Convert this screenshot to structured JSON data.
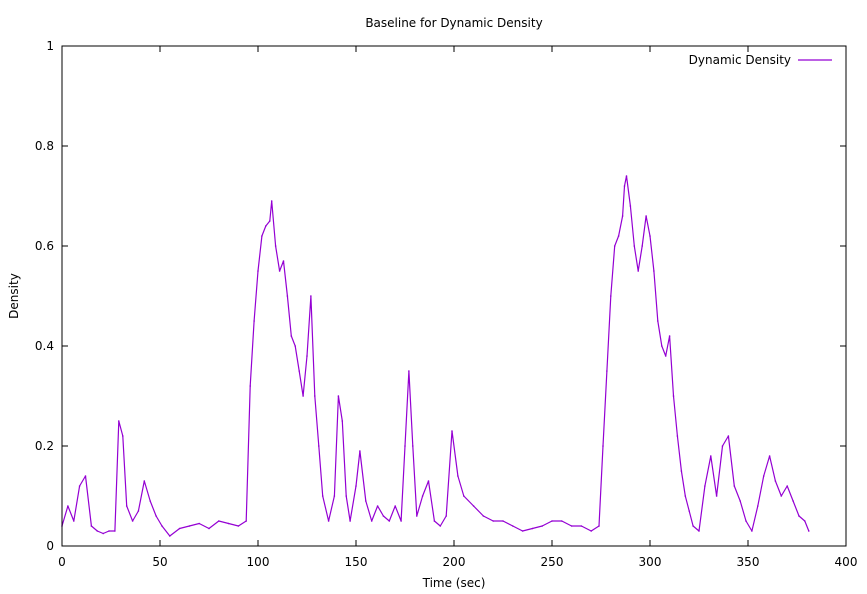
{
  "chart_data": {
    "type": "line",
    "title": "Baseline for Dynamic Density",
    "xlabel": "Time (sec)",
    "ylabel": "Density",
    "xlim": [
      0,
      400
    ],
    "ylim": [
      0,
      1
    ],
    "xticks": [
      0,
      50,
      100,
      150,
      200,
      250,
      300,
      350,
      400
    ],
    "yticks": [
      0,
      0.2,
      0.4,
      0.6,
      0.8,
      1
    ],
    "xtick_labels": [
      "0",
      "50",
      "100",
      "150",
      "200",
      "250",
      "300",
      "350",
      "400"
    ],
    "ytick_labels": [
      "0",
      "0.2",
      "0.4",
      "0.6",
      "0.8",
      "1"
    ],
    "grid": false,
    "legend": "top-right",
    "series": [
      {
        "name": "Dynamic Density",
        "color": "#9400d3",
        "x": [
          0,
          3,
          6,
          9,
          12,
          15,
          18,
          21,
          24,
          27,
          29,
          31,
          33,
          36,
          39,
          42,
          45,
          48,
          51,
          55,
          60,
          65,
          70,
          75,
          80,
          85,
          90,
          94,
          96,
          98,
          100,
          102,
          104,
          106,
          107,
          109,
          111,
          113,
          115,
          117,
          119,
          121,
          123,
          125,
          127,
          129,
          131,
          133,
          136,
          139,
          141,
          143,
          145,
          147,
          150,
          152,
          155,
          158,
          161,
          164,
          167,
          170,
          173,
          175,
          177,
          179,
          181,
          184,
          187,
          190,
          193,
          196,
          199,
          202,
          205,
          210,
          215,
          220,
          225,
          230,
          235,
          240,
          245,
          250,
          255,
          260,
          265,
          270,
          274,
          276,
          278,
          280,
          282,
          284,
          286,
          287,
          288,
          290,
          292,
          294,
          296,
          298,
          300,
          302,
          304,
          306,
          308,
          310,
          312,
          314,
          316,
          318,
          320,
          322,
          325,
          328,
          331,
          334,
          337,
          340,
          343,
          346,
          349,
          352,
          355,
          358,
          361,
          364,
          367,
          370,
          373,
          376,
          379,
          381
        ],
        "values": [
          0.04,
          0.08,
          0.05,
          0.12,
          0.14,
          0.04,
          0.03,
          0.025,
          0.03,
          0.03,
          0.25,
          0.22,
          0.08,
          0.05,
          0.07,
          0.13,
          0.09,
          0.06,
          0.04,
          0.02,
          0.035,
          0.04,
          0.045,
          0.035,
          0.05,
          0.045,
          0.04,
          0.05,
          0.32,
          0.45,
          0.55,
          0.62,
          0.64,
          0.65,
          0.69,
          0.6,
          0.55,
          0.57,
          0.5,
          0.42,
          0.4,
          0.35,
          0.3,
          0.38,
          0.5,
          0.3,
          0.2,
          0.1,
          0.05,
          0.1,
          0.3,
          0.25,
          0.1,
          0.05,
          0.12,
          0.19,
          0.09,
          0.05,
          0.08,
          0.06,
          0.05,
          0.08,
          0.05,
          0.2,
          0.35,
          0.2,
          0.06,
          0.1,
          0.13,
          0.05,
          0.04,
          0.06,
          0.23,
          0.14,
          0.1,
          0.08,
          0.06,
          0.05,
          0.05,
          0.04,
          0.03,
          0.035,
          0.04,
          0.05,
          0.05,
          0.04,
          0.04,
          0.03,
          0.04,
          0.2,
          0.35,
          0.5,
          0.6,
          0.62,
          0.66,
          0.72,
          0.74,
          0.68,
          0.6,
          0.55,
          0.6,
          0.66,
          0.62,
          0.55,
          0.45,
          0.4,
          0.38,
          0.42,
          0.3,
          0.22,
          0.15,
          0.1,
          0.07,
          0.04,
          0.03,
          0.12,
          0.18,
          0.1,
          0.2,
          0.22,
          0.12,
          0.09,
          0.05,
          0.03,
          0.08,
          0.14,
          0.18,
          0.13,
          0.1,
          0.12,
          0.09,
          0.06,
          0.05,
          0.03
        ]
      }
    ]
  }
}
